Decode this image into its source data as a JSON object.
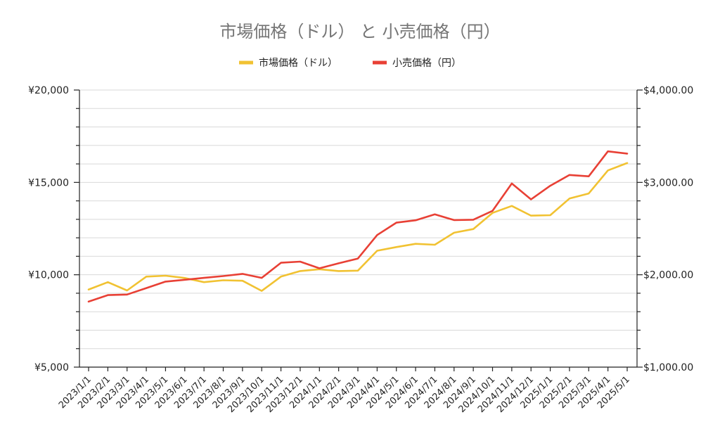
{
  "chart_data": {
    "type": "line",
    "title": "市場価格（ドル） と 小売価格（円）",
    "legend_position": "top",
    "grid": true,
    "categories": [
      "2023/1/1",
      "2023/2/1",
      "2023/3/1",
      "2023/4/1",
      "2023/5/1",
      "2023/6/1",
      "2023/7/1",
      "2023/8/1",
      "2023/9/1",
      "2023/10/1",
      "2023/11/1",
      "2023/12/1",
      "2024/1/1",
      "2024/2/1",
      "2024/3/1",
      "2024/4/1",
      "2024/5/1",
      "2024/6/1",
      "2024/7/1",
      "2024/8/1",
      "2024/9/1",
      "2024/10/1",
      "2024/11/1",
      "2024/12/1",
      "2025/1/1",
      "2025/2/1",
      "2025/3/1",
      "2025/4/1",
      "2025/5/1"
    ],
    "y_left": {
      "ylim": [
        5000,
        20000
      ],
      "ticks": [
        "¥5,000",
        "¥10,000",
        "¥15,000",
        "¥20,000"
      ]
    },
    "y_right": {
      "ylim": [
        1000,
        4000
      ],
      "ticks": [
        "$1,000.00",
        "$2,000.00",
        "$3,000.00",
        "$4,000.00"
      ]
    },
    "series": [
      {
        "name": "市場価格（ドル）",
        "axis": "right",
        "color": "#f1c232",
        "values": [
          1840,
          1920,
          1830,
          1980,
          1990,
          1965,
          1920,
          1940,
          1935,
          1825,
          1980,
          2040,
          2060,
          2040,
          2045,
          2260,
          2300,
          2335,
          2325,
          2455,
          2495,
          2670,
          2745,
          2640,
          2645,
          2825,
          2880,
          3130,
          3210
        ]
      },
      {
        "name": "小売価格（円）",
        "axis": "left",
        "color": "#e84035",
        "values": [
          8550,
          8900,
          8930,
          9280,
          9630,
          9730,
          9830,
          9930,
          10050,
          9830,
          10650,
          10710,
          10350,
          10620,
          10880,
          12150,
          12820,
          12950,
          13270,
          12960,
          12980,
          13460,
          14940,
          14080,
          14820,
          15400,
          15330,
          16680,
          16560
        ]
      }
    ]
  }
}
